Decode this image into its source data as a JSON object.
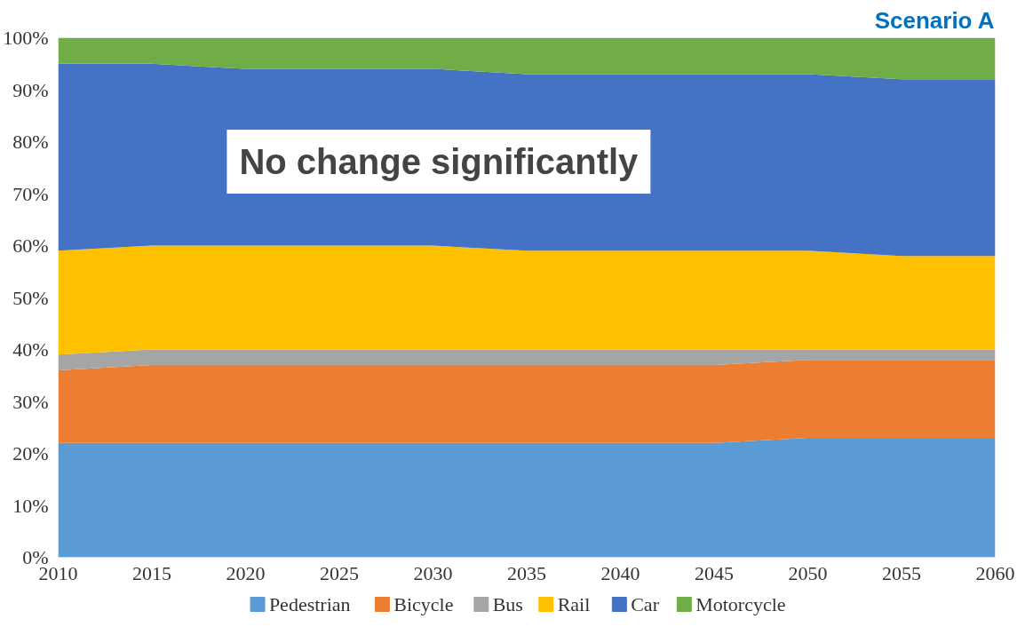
{
  "chart_data": {
    "type": "area",
    "stacked": true,
    "title": "Scenario A",
    "x": [
      2010,
      2015,
      2020,
      2025,
      2030,
      2035,
      2040,
      2045,
      2050,
      2055,
      2060
    ],
    "series": [
      {
        "name": "Pedestrian",
        "color": "#5b9bd5",
        "values": [
          22,
          22,
          22,
          22,
          22,
          22,
          22,
          22,
          23,
          23,
          23
        ]
      },
      {
        "name": "Bicycle",
        "color": "#ed7d31",
        "values": [
          14,
          15,
          15,
          15,
          15,
          15,
          15,
          15,
          15,
          15,
          15
        ]
      },
      {
        "name": "Bus",
        "color": "#a5a5a5",
        "values": [
          3,
          3,
          3,
          3,
          3,
          3,
          3,
          3,
          2,
          2,
          2
        ]
      },
      {
        "name": "Rail",
        "color": "#ffc000",
        "values": [
          20,
          20,
          20,
          20,
          20,
          19,
          19,
          19,
          19,
          18,
          18
        ]
      },
      {
        "name": "Car",
        "color": "#4472c4",
        "values": [
          36,
          35,
          34,
          34,
          34,
          34,
          34,
          34,
          34,
          34,
          34
        ]
      },
      {
        "name": "Motorcycle",
        "color": "#70ad47",
        "values": [
          5,
          5,
          6,
          6,
          6,
          7,
          7,
          7,
          7,
          8,
          8
        ]
      }
    ],
    "xlim": [
      2010,
      2060
    ],
    "xticks": [
      2010,
      2015,
      2020,
      2025,
      2030,
      2035,
      2040,
      2045,
      2050,
      2055,
      2060
    ],
    "ylim": [
      0,
      100
    ],
    "yticks": [
      {
        "value": 0,
        "label": "0%"
      },
      {
        "value": 10,
        "label": "10%"
      },
      {
        "value": 20,
        "label": "20%"
      },
      {
        "value": 30,
        "label": "30%"
      },
      {
        "value": 40,
        "label": "40%"
      },
      {
        "value": 50,
        "label": "50%"
      },
      {
        "value": 60,
        "label": "60%"
      },
      {
        "value": 70,
        "label": "70%"
      },
      {
        "value": 80,
        "label": "80%"
      },
      {
        "value": 90,
        "label": "90%"
      },
      {
        "value": 100,
        "label": "100%"
      }
    ],
    "annotations": [
      "No change significantly"
    ],
    "grid": false,
    "legend": "bottom"
  }
}
